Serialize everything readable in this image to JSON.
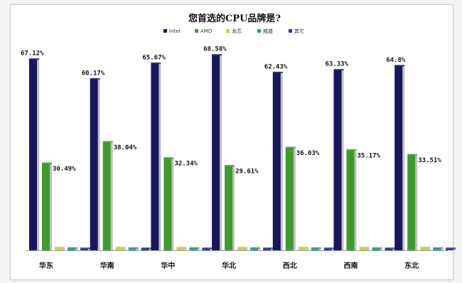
{
  "chart_data": {
    "type": "bar",
    "title": "您首选的CPU品牌是?",
    "categories": [
      "华东",
      "华南",
      "华中",
      "华北",
      "西北",
      "西南",
      "东北"
    ],
    "series": [
      {
        "name": "Intel",
        "color": "#17175e",
        "values": [
          67.12,
          60.17,
          65.67,
          68.58,
          62.43,
          63.33,
          64.8
        ],
        "labels": [
          "67.12%",
          "60.17%",
          "65.67%",
          "68.58%",
          "62.43%",
          "63.33%",
          "64.8%"
        ]
      },
      {
        "name": "AMD",
        "color": "#3e9b2c",
        "values": [
          30.49,
          38.04,
          32.34,
          29.61,
          36.03,
          35.17,
          33.51
        ],
        "labels": [
          "30.49%",
          "38.04%",
          "32.34%",
          "29.61%",
          "36.03%",
          "35.17%",
          "33.51%"
        ]
      },
      {
        "name": "龙芯",
        "color": "#c9d24a",
        "values": [
          0.9,
          0.9,
          0.9,
          0.9,
          0.9,
          0.9,
          0.9
        ]
      },
      {
        "name": "威盛",
        "color": "#2f9a8c",
        "values": [
          0.7,
          0.7,
          0.7,
          0.7,
          0.7,
          0.7,
          0.7
        ]
      },
      {
        "name": "其它",
        "color": "#2a3ba0",
        "values": [
          0.6,
          0.6,
          0.6,
          0.6,
          0.6,
          0.6,
          0.6
        ]
      }
    ],
    "ylim": [
      0,
      70
    ],
    "legend_position": "top-center",
    "grid": false
  }
}
